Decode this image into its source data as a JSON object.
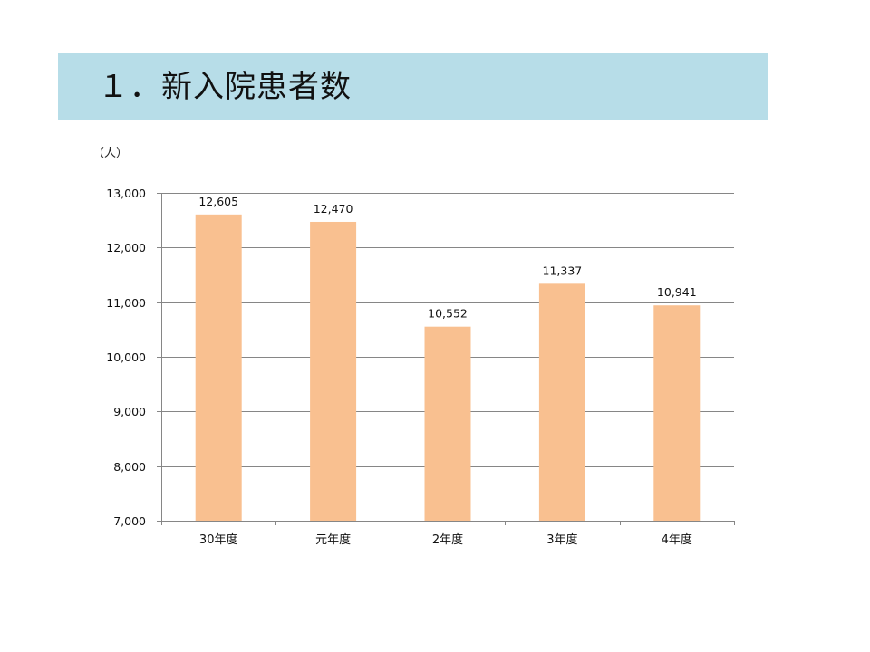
{
  "title": "１．新入院患者数",
  "colors": {
    "title_band": "#b7dde8",
    "bar": "#f9c090",
    "grid": "#868686"
  },
  "chart_data": {
    "type": "bar",
    "unit_label": "（人）",
    "categories": [
      "30年度",
      "元年度",
      "2年度",
      "3年度",
      "4年度"
    ],
    "values": [
      12605,
      12470,
      10552,
      11337,
      10941
    ],
    "data_labels": [
      "12,605",
      "12,470",
      "10,552",
      "11,337",
      "10,941"
    ],
    "ylim": [
      7000,
      13000
    ],
    "yticks": [
      7000,
      8000,
      9000,
      10000,
      11000,
      12000,
      13000
    ],
    "ytick_labels": [
      "7,000",
      "8,000",
      "9,000",
      "10,000",
      "11,000",
      "12,000",
      "13,000"
    ],
    "grid": true,
    "legend": "none"
  }
}
